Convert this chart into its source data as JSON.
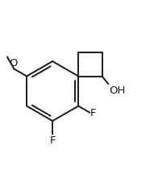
{
  "background_color": "#ffffff",
  "line_color": "#1a1a1a",
  "line_width": 1.4,
  "font_size": 9.5,
  "bx": 0.34,
  "by": 0.5,
  "r": 0.195,
  "cb_size": 0.155,
  "labels": {
    "OH": "OH",
    "F1": "F",
    "F2": "F",
    "O": "O"
  }
}
